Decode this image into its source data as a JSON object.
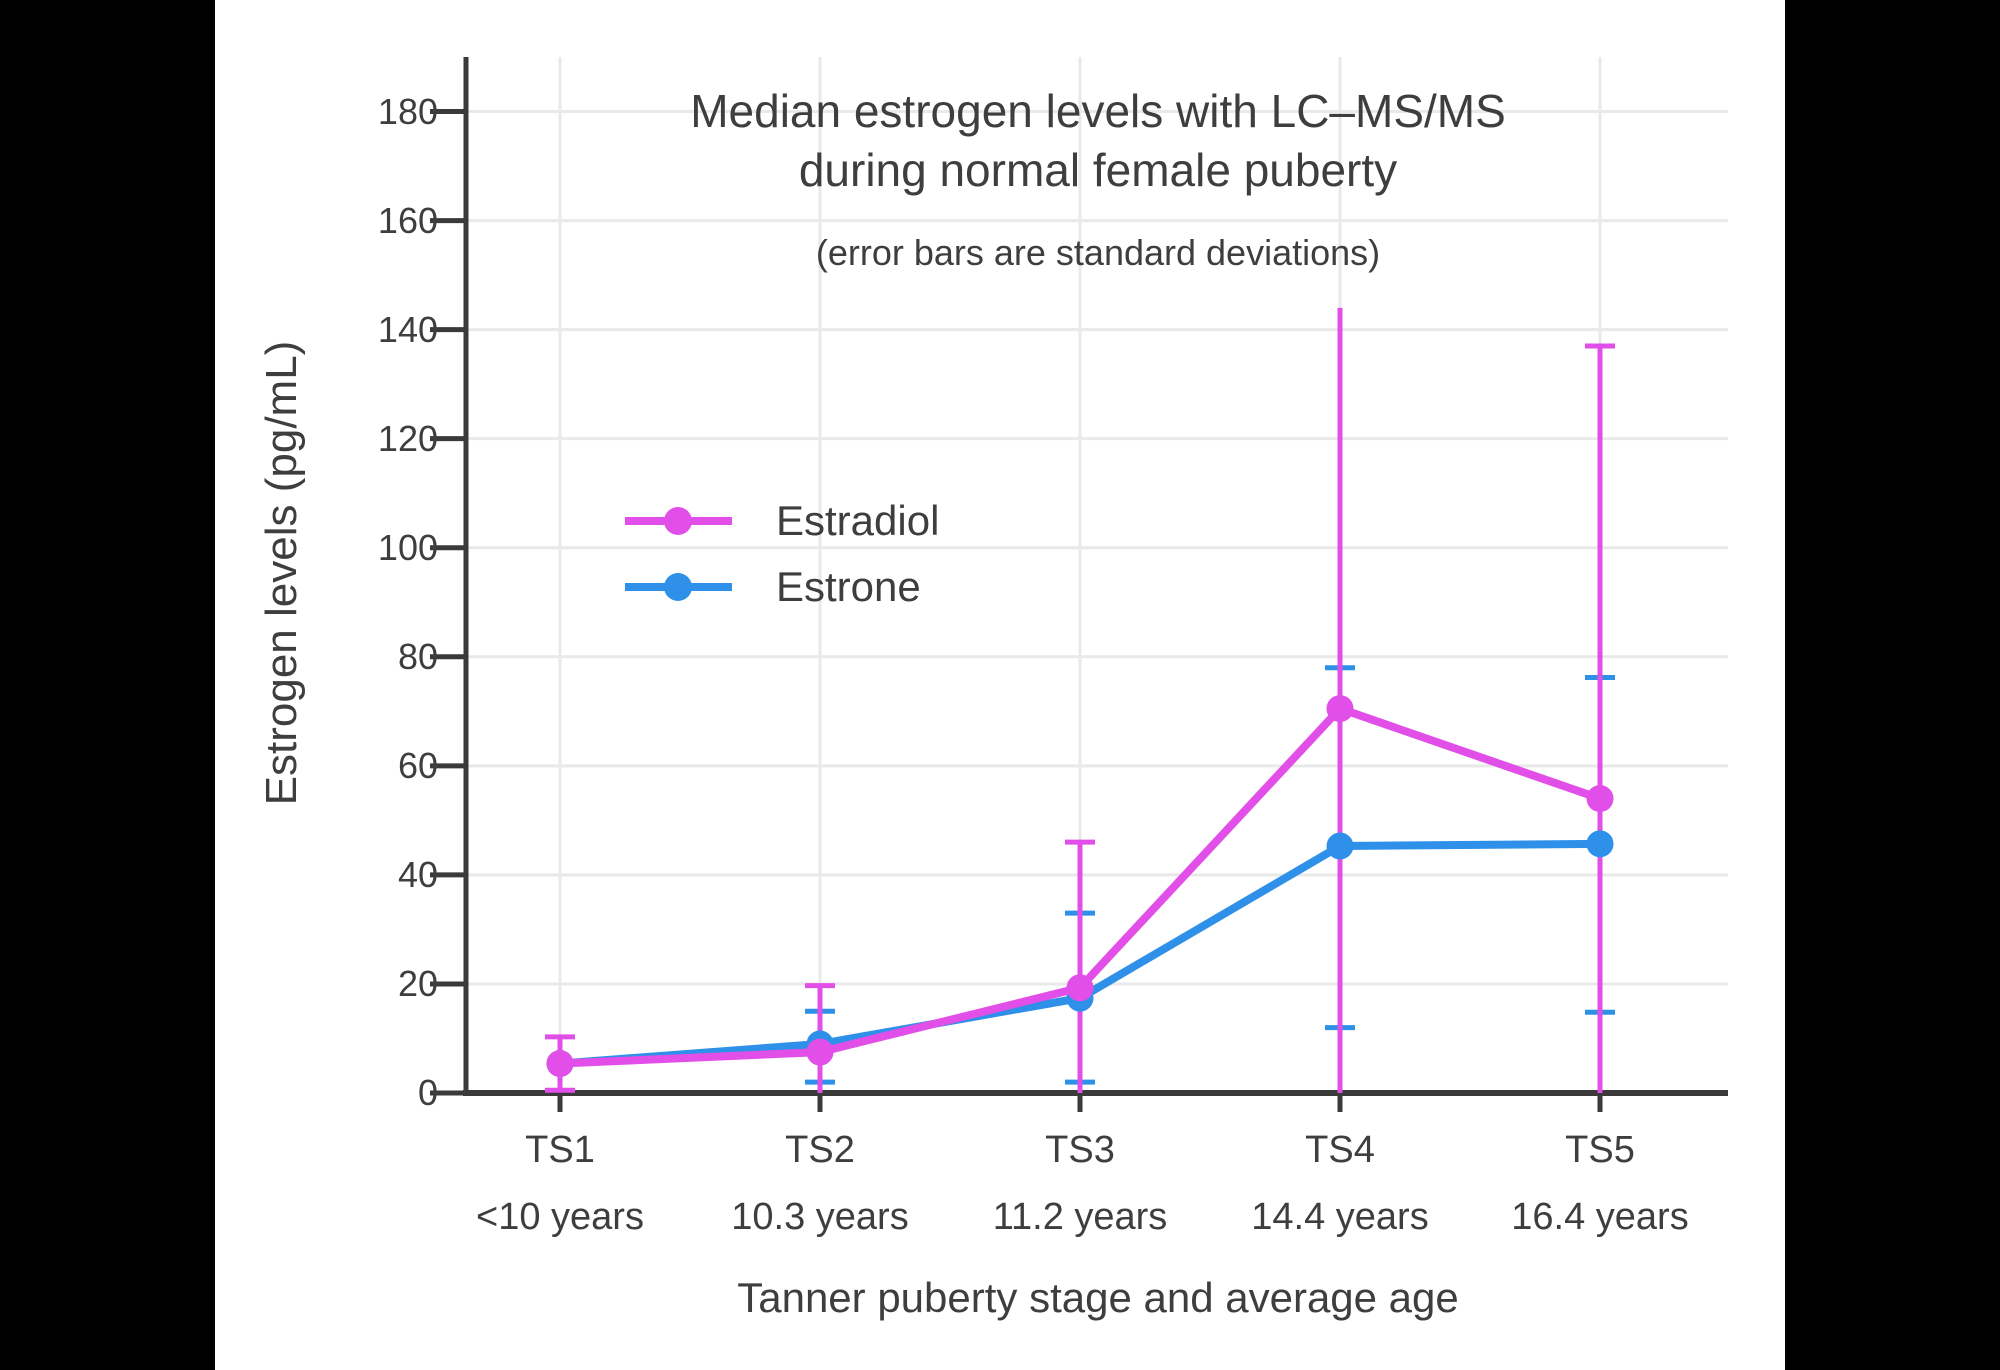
{
  "page": {
    "background": "#000000",
    "canvas_background": "#FFFFFF"
  },
  "chart_data": {
    "type": "line",
    "title_line1": "Median estrogen levels with LC–MS/MS",
    "title_line2": "during normal female puberty",
    "subtitle": "(error bars are standard deviations)",
    "xlabel": "Tanner puberty stage and average age",
    "ylabel": "Estrogen levels (pg/mL)",
    "categories": [
      "TS1",
      "TS2",
      "TS3",
      "TS4",
      "TS5"
    ],
    "category_ages": [
      "<10 years",
      "10.3 years",
      "11.2 years",
      "14.4 years",
      "16.4 years"
    ],
    "ylim": [
      0,
      190
    ],
    "ytick_interval": 20,
    "ytick_labels": [
      "0",
      "20",
      "40",
      "60",
      "80",
      "100",
      "120",
      "140",
      "160",
      "180"
    ],
    "grid": true,
    "legend_position": "inside-upper-left",
    "text_color": "#3E3E3E",
    "grid_color": "#E9E9E9",
    "axis_color": "#3A3A3A",
    "series": [
      {
        "name": "Estradiol",
        "color": "#E24FE8",
        "values": [
          5.4,
          7.5,
          19.3,
          70.5,
          54
        ],
        "err_low": [
          0.5,
          0,
          0,
          0,
          0
        ],
        "err_high": [
          10.3,
          19.7,
          46,
          144,
          137
        ],
        "cap_low": [
          true,
          false,
          false,
          false,
          false
        ],
        "cap_high": [
          true,
          true,
          true,
          false,
          true
        ]
      },
      {
        "name": "Estrone",
        "color": "#2E90E8",
        "values": [
          5.4,
          9,
          17.4,
          45.3,
          45.7
        ],
        "err_low": [
          null,
          2,
          2,
          12,
          14.8
        ],
        "err_high": [
          null,
          15,
          33,
          78,
          76.2
        ],
        "cap_low": [
          false,
          true,
          true,
          true,
          true
        ],
        "cap_high": [
          false,
          true,
          true,
          true,
          true
        ]
      }
    ]
  }
}
